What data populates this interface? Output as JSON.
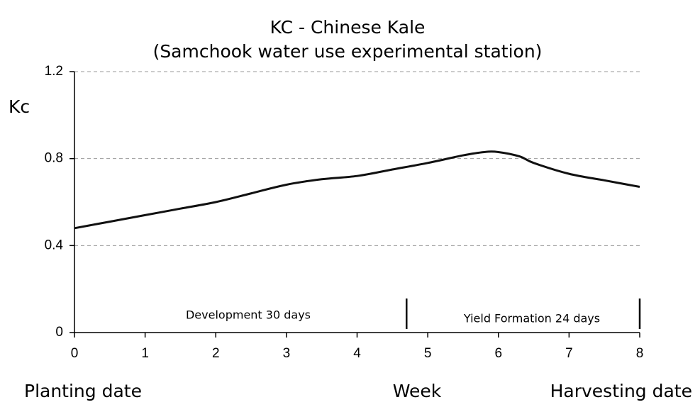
{
  "chart_data": {
    "type": "line",
    "title": "KC - Chinese Kale",
    "subtitle": "(Samchook water use experimental station)",
    "y_label": "Kc",
    "x_labels": [
      "Planting date",
      "Week",
      "Harvesting date"
    ],
    "annotations": [
      "Development 30 days",
      "Yield Formation 24 days"
    ],
    "stage_boundaries": [
      4.7,
      8
    ],
    "x": [
      0,
      0.5,
      1,
      1.5,
      2,
      2.5,
      3,
      3.5,
      4,
      4.5,
      5,
      5.5,
      5.8,
      6,
      6.3,
      6.5,
      7,
      7.5,
      8
    ],
    "series": [
      {
        "name": "Kc",
        "color": "#111111",
        "values": [
          0.48,
          0.51,
          0.54,
          0.57,
          0.6,
          0.64,
          0.68,
          0.705,
          0.72,
          0.75,
          0.78,
          0.815,
          0.83,
          0.83,
          0.81,
          0.78,
          0.73,
          0.7,
          0.67
        ]
      }
    ],
    "xlim": [
      0,
      8
    ],
    "xticks": [
      0,
      1,
      2,
      3,
      4,
      5,
      6,
      7,
      8
    ],
    "ylim": [
      0,
      1.2
    ],
    "yticks": [
      0,
      0.4,
      0.8,
      1.2
    ],
    "grid": true
  }
}
